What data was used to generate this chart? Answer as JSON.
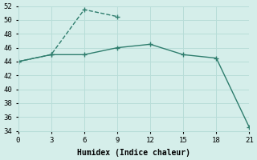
{
  "line1_x": [
    0,
    3,
    6,
    9
  ],
  "line1_y": [
    44,
    45,
    51.5,
    50.5
  ],
  "line2_x": [
    0,
    3,
    6,
    9,
    12,
    15,
    18,
    21
  ],
  "line2_y": [
    44,
    45,
    45,
    46,
    46.5,
    45,
    44.5,
    34.5
  ],
  "line_color": "#2e7d6d",
  "markersize": 4,
  "xlabel": "Humidex (Indice chaleur)",
  "xlim": [
    0,
    21
  ],
  "ylim": [
    34,
    52
  ],
  "xticks": [
    0,
    3,
    6,
    9,
    12,
    15,
    18,
    21
  ],
  "yticks": [
    34,
    36,
    38,
    40,
    42,
    44,
    46,
    48,
    50,
    52
  ],
  "grid_color": "#b8ddd8",
  "bg_color": "#d5eeea",
  "linewidth": 1.0,
  "linestyle1": "--",
  "linestyle2": "-"
}
